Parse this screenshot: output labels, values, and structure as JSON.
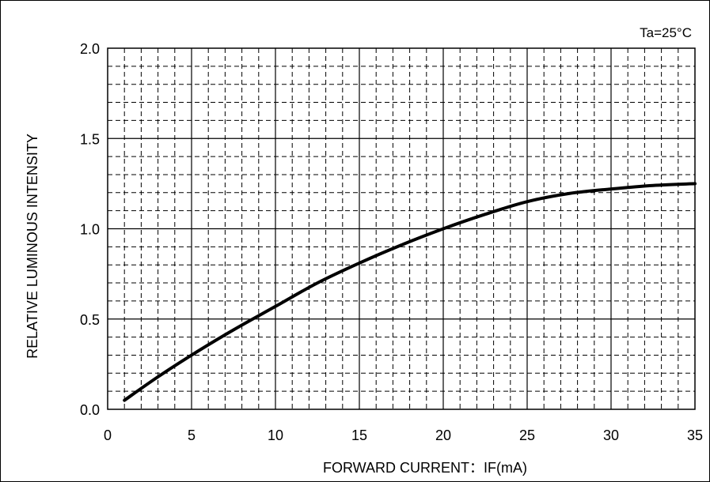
{
  "chart_data": {
    "type": "line",
    "condition": "Ta=25°C",
    "xlabel": "FORWARD CURRENT：IF(mA)",
    "ylabel": "RELATIVE  LUMINOUS INTENSITY",
    "xlim": [
      0,
      35
    ],
    "ylim": [
      0.0,
      2.0
    ],
    "xticks": [
      "0",
      "5",
      "10",
      "15",
      "20",
      "25",
      "30",
      "35"
    ],
    "yticks": [
      "0.0",
      "0.5",
      "1.0",
      "1.5",
      "2.0"
    ],
    "grid": true,
    "series": [
      {
        "x": [
          1,
          3,
          5,
          7.5,
          10,
          12.5,
          15,
          17.5,
          20,
          22.5,
          25,
          27.5,
          30,
          32.5,
          35
        ],
        "y": [
          0.05,
          0.18,
          0.3,
          0.44,
          0.57,
          0.7,
          0.81,
          0.91,
          1.0,
          1.08,
          1.15,
          1.195,
          1.22,
          1.24,
          1.25
        ]
      }
    ]
  }
}
